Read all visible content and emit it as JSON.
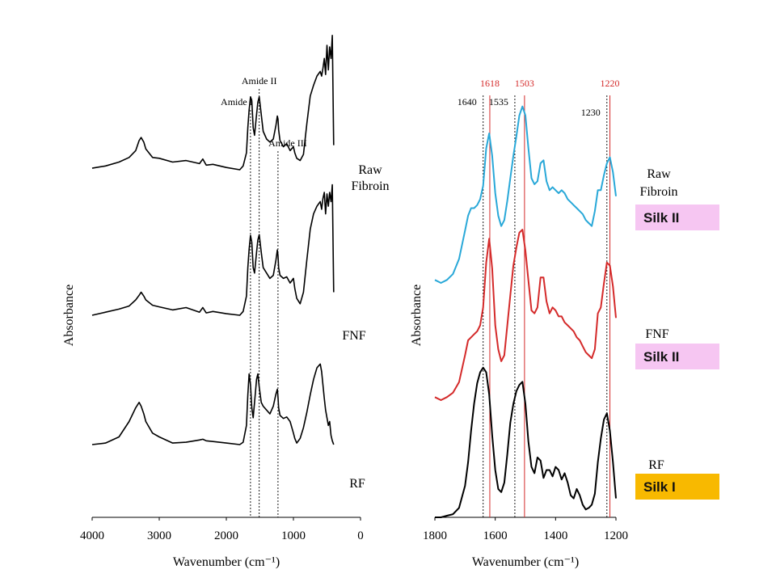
{
  "chart_data": [
    {
      "type": "line",
      "xlabel": "Wavenumber (cm⁻¹)",
      "ylabel": "Absorbance",
      "xlim": [
        4000,
        0
      ],
      "x_ticks": [
        "4000",
        "3000",
        "2000",
        "1000",
        "0"
      ],
      "series": [
        {
          "name": "Raw Fibroin",
          "label_lines": [
            "Raw",
            "Fibroin"
          ],
          "color": "#000000",
          "x": [
            4000,
            3800,
            3600,
            3450,
            3350,
            3300,
            3270,
            3230,
            3200,
            3100,
            3000,
            2800,
            2600,
            2400,
            2350,
            2300,
            2200,
            2000,
            1800,
            1750,
            1700,
            1680,
            1660,
            1640,
            1620,
            1600,
            1580,
            1550,
            1530,
            1510,
            1480,
            1450,
            1400,
            1350,
            1300,
            1260,
            1240,
            1230,
            1220,
            1200,
            1150,
            1100,
            1050,
            1000,
            980,
            950,
            900,
            850,
            800,
            750,
            700,
            650,
            600,
            580,
            560,
            540,
            520,
            500,
            480,
            460,
            440,
            420,
            400
          ],
          "y": [
            0.02,
            0.05,
            0.1,
            0.16,
            0.25,
            0.38,
            0.42,
            0.36,
            0.27,
            0.16,
            0.15,
            0.1,
            0.12,
            0.08,
            0.14,
            0.06,
            0.07,
            0.03,
            0.0,
            0.05,
            0.22,
            0.55,
            0.78,
            0.95,
            0.9,
            0.55,
            0.45,
            0.72,
            0.88,
            0.95,
            0.72,
            0.5,
            0.4,
            0.36,
            0.4,
            0.58,
            0.7,
            0.66,
            0.52,
            0.38,
            0.3,
            0.34,
            0.25,
            0.3,
            0.22,
            0.15,
            0.12,
            0.2,
            0.6,
            0.96,
            1.1,
            1.22,
            1.28,
            1.22,
            1.32,
            1.45,
            1.24,
            1.62,
            1.3,
            1.6,
            1.45,
            1.75,
            0.32
          ]
        },
        {
          "name": "FNF",
          "label_lines": [
            "FNF"
          ],
          "color": "#000000",
          "x": [
            4000,
            3800,
            3600,
            3450,
            3350,
            3300,
            3270,
            3230,
            3200,
            3100,
            3000,
            2800,
            2600,
            2400,
            2350,
            2300,
            2200,
            2000,
            1800,
            1750,
            1700,
            1680,
            1660,
            1640,
            1620,
            1600,
            1580,
            1550,
            1530,
            1510,
            1480,
            1450,
            1400,
            1350,
            1300,
            1260,
            1240,
            1230,
            1220,
            1200,
            1150,
            1100,
            1050,
            1000,
            980,
            950,
            900,
            850,
            800,
            750,
            700,
            650,
            600,
            580,
            560,
            540,
            520,
            500,
            480,
            460,
            440,
            420,
            400
          ],
          "y": [
            0.0,
            0.04,
            0.08,
            0.12,
            0.2,
            0.26,
            0.3,
            0.25,
            0.2,
            0.13,
            0.11,
            0.07,
            0.1,
            0.04,
            0.1,
            0.03,
            0.05,
            0.02,
            0.0,
            0.05,
            0.25,
            0.62,
            0.86,
            1.04,
            0.95,
            0.62,
            0.55,
            0.82,
            0.98,
            1.05,
            0.82,
            0.62,
            0.55,
            0.48,
            0.52,
            0.72,
            0.85,
            0.78,
            0.62,
            0.52,
            0.48,
            0.5,
            0.42,
            0.48,
            0.35,
            0.22,
            0.15,
            0.3,
            0.72,
            1.12,
            1.32,
            1.42,
            1.48,
            1.38,
            1.52,
            1.6,
            1.32,
            1.58,
            1.42,
            1.6,
            1.48,
            1.7,
            0.3
          ]
        },
        {
          "name": "RF",
          "label_lines": [
            "RF"
          ],
          "color": "#000000",
          "x": [
            4000,
            3800,
            3600,
            3450,
            3350,
            3300,
            3270,
            3230,
            3200,
            3100,
            3000,
            2800,
            2600,
            2400,
            2350,
            2300,
            2200,
            2000,
            1800,
            1750,
            1700,
            1680,
            1660,
            1640,
            1620,
            1600,
            1580,
            1550,
            1530,
            1510,
            1480,
            1450,
            1400,
            1350,
            1300,
            1260,
            1240,
            1230,
            1220,
            1200,
            1150,
            1100,
            1050,
            1000,
            980,
            950,
            900,
            850,
            800,
            750,
            700,
            650,
            600,
            580,
            560,
            540,
            520,
            500,
            480,
            460,
            440,
            420,
            400
          ],
          "y": [
            0.0,
            0.02,
            0.1,
            0.3,
            0.48,
            0.55,
            0.5,
            0.4,
            0.3,
            0.15,
            0.1,
            0.02,
            0.03,
            0.06,
            0.07,
            0.05,
            0.04,
            0.02,
            0.0,
            0.03,
            0.25,
            0.65,
            0.92,
            0.78,
            0.48,
            0.35,
            0.55,
            0.85,
            0.92,
            0.75,
            0.55,
            0.5,
            0.45,
            0.4,
            0.5,
            0.66,
            0.72,
            0.62,
            0.48,
            0.38,
            0.34,
            0.36,
            0.3,
            0.15,
            0.08,
            0.02,
            0.08,
            0.22,
            0.42,
            0.65,
            0.85,
            1.0,
            1.05,
            0.95,
            0.78,
            0.6,
            0.45,
            0.35,
            0.25,
            0.3,
            0.12,
            0.05,
            0.0
          ]
        }
      ],
      "vlines": [
        {
          "x": 1640,
          "label": "Amide I"
        },
        {
          "x": 1510,
          "label": "Amide II"
        },
        {
          "x": 1230,
          "label": "Amide III"
        }
      ]
    },
    {
      "type": "line",
      "xlabel": "Wavenumber (cm⁻¹)",
      "ylabel": "Absorbance",
      "xlim": [
        1800,
        1200
      ],
      "x_ticks": [
        "1800",
        "1600",
        "1400",
        "1200"
      ],
      "series": [
        {
          "name": "Raw Fibroin",
          "label_lines": [
            "Raw",
            "Fibroin"
          ],
          "color": "#29a8d8",
          "badge": "Silk II",
          "badge_color": "#f6c6f2",
          "x": [
            1800,
            1780,
            1760,
            1740,
            1720,
            1700,
            1690,
            1680,
            1670,
            1660,
            1650,
            1640,
            1630,
            1620,
            1610,
            1600,
            1590,
            1580,
            1570,
            1560,
            1550,
            1540,
            1530,
            1520,
            1510,
            1500,
            1490,
            1480,
            1470,
            1460,
            1450,
            1440,
            1430,
            1420,
            1410,
            1400,
            1390,
            1380,
            1370,
            1360,
            1350,
            1340,
            1330,
            1320,
            1310,
            1300,
            1290,
            1280,
            1270,
            1260,
            1250,
            1240,
            1230,
            1220,
            1210,
            1200
          ],
          "y": [
            0.02,
            0.0,
            0.02,
            0.06,
            0.16,
            0.35,
            0.45,
            0.5,
            0.5,
            0.52,
            0.56,
            0.65,
            0.9,
            1.0,
            0.85,
            0.6,
            0.45,
            0.38,
            0.42,
            0.55,
            0.7,
            0.85,
            0.98,
            1.12,
            1.18,
            1.12,
            0.9,
            0.7,
            0.66,
            0.68,
            0.8,
            0.82,
            0.68,
            0.62,
            0.64,
            0.62,
            0.6,
            0.62,
            0.6,
            0.56,
            0.54,
            0.52,
            0.5,
            0.48,
            0.46,
            0.42,
            0.4,
            0.38,
            0.48,
            0.62,
            0.62,
            0.72,
            0.8,
            0.84,
            0.74,
            0.58
          ]
        },
        {
          "name": "FNF",
          "label_lines": [
            "FNF"
          ],
          "color": "#d42a2a",
          "badge": "Silk II",
          "badge_color": "#f6c6f2",
          "x": [
            1800,
            1780,
            1760,
            1740,
            1720,
            1700,
            1690,
            1680,
            1670,
            1660,
            1650,
            1640,
            1630,
            1620,
            1610,
            1600,
            1590,
            1580,
            1570,
            1560,
            1550,
            1540,
            1530,
            1520,
            1510,
            1500,
            1490,
            1480,
            1470,
            1460,
            1450,
            1440,
            1430,
            1420,
            1410,
            1400,
            1390,
            1380,
            1370,
            1360,
            1350,
            1340,
            1330,
            1320,
            1310,
            1300,
            1290,
            1280,
            1270,
            1260,
            1250,
            1240,
            1230,
            1220,
            1210,
            1200
          ],
          "y": [
            0.02,
            0.0,
            0.02,
            0.05,
            0.12,
            0.3,
            0.4,
            0.42,
            0.44,
            0.46,
            0.5,
            0.62,
            0.92,
            1.08,
            0.88,
            0.5,
            0.34,
            0.26,
            0.3,
            0.5,
            0.7,
            0.9,
            1.02,
            1.12,
            1.14,
            1.0,
            0.8,
            0.6,
            0.58,
            0.62,
            0.82,
            0.82,
            0.66,
            0.58,
            0.62,
            0.6,
            0.56,
            0.56,
            0.52,
            0.5,
            0.48,
            0.46,
            0.42,
            0.4,
            0.36,
            0.32,
            0.3,
            0.28,
            0.34,
            0.58,
            0.62,
            0.78,
            0.92,
            0.9,
            0.76,
            0.55
          ]
        },
        {
          "name": "RF",
          "label_lines": [
            "RF"
          ],
          "color": "#000000",
          "badge": "Silk I",
          "badge_color": "#f8b900",
          "x": [
            1800,
            1780,
            1760,
            1740,
            1720,
            1700,
            1690,
            1680,
            1670,
            1660,
            1650,
            1640,
            1630,
            1620,
            1610,
            1600,
            1590,
            1580,
            1570,
            1560,
            1550,
            1540,
            1530,
            1520,
            1510,
            1500,
            1490,
            1480,
            1470,
            1460,
            1450,
            1440,
            1430,
            1420,
            1410,
            1400,
            1390,
            1380,
            1370,
            1360,
            1350,
            1340,
            1330,
            1320,
            1310,
            1300,
            1290,
            1280,
            1270,
            1260,
            1250,
            1240,
            1230,
            1220,
            1210,
            1200
          ],
          "y": [
            0.0,
            0.0,
            0.01,
            0.02,
            0.06,
            0.2,
            0.35,
            0.55,
            0.72,
            0.85,
            0.92,
            0.95,
            0.92,
            0.78,
            0.52,
            0.3,
            0.18,
            0.16,
            0.22,
            0.4,
            0.6,
            0.72,
            0.8,
            0.84,
            0.86,
            0.72,
            0.48,
            0.32,
            0.28,
            0.38,
            0.36,
            0.25,
            0.3,
            0.3,
            0.26,
            0.32,
            0.3,
            0.24,
            0.28,
            0.22,
            0.14,
            0.12,
            0.18,
            0.14,
            0.08,
            0.05,
            0.06,
            0.08,
            0.15,
            0.35,
            0.5,
            0.62,
            0.66,
            0.55,
            0.35,
            0.12
          ]
        }
      ],
      "vlines": [
        {
          "x": 1640,
          "label": "1640",
          "color": "#000000",
          "style": "dotted"
        },
        {
          "x": 1618,
          "label": "1618",
          "color": "#d42a2a",
          "style": "solid"
        },
        {
          "x": 1535,
          "label": "1535",
          "color": "#000000",
          "style": "dotted"
        },
        {
          "x": 1503,
          "label": "1503",
          "color": "#d42a2a",
          "style": "solid"
        },
        {
          "x": 1230,
          "label": "1230",
          "color": "#000000",
          "style": "dotted"
        },
        {
          "x": 1220,
          "label": "1220",
          "color": "#d42a2a",
          "style": "solid"
        }
      ]
    }
  ]
}
